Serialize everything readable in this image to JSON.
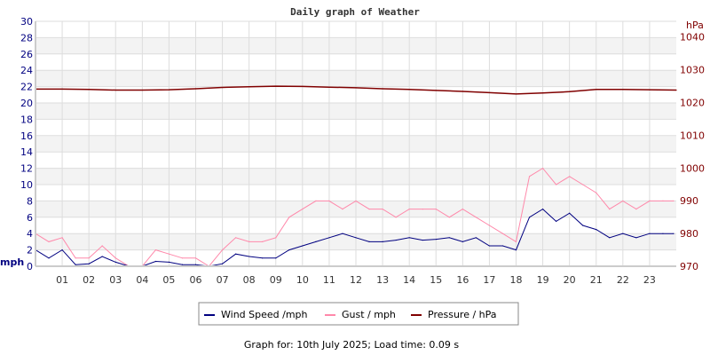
{
  "chart_data": {
    "type": "line",
    "title": "Daily graph of Weather",
    "left_axis": {
      "label": "mph",
      "range": [
        0,
        30
      ],
      "ticks": [
        0,
        2,
        4,
        6,
        8,
        10,
        12,
        14,
        16,
        18,
        20,
        22,
        24,
        26,
        28,
        30
      ],
      "color": "#000080"
    },
    "right_axis": {
      "label": "hPa",
      "range": [
        970,
        1044.8
      ],
      "ticks": [
        970,
        980,
        990,
        1000,
        1010,
        1020,
        1030,
        1040
      ],
      "color": "#800000"
    },
    "x_ticks": [
      "01",
      "02",
      "03",
      "04",
      "05",
      "06",
      "07",
      "08",
      "09",
      "10",
      "11",
      "12",
      "13",
      "14",
      "15",
      "16",
      "17",
      "18",
      "19",
      "20",
      "21",
      "22",
      "23"
    ],
    "x_range_hours": [
      0,
      24
    ],
    "grid": true,
    "legend_position": "bottom",
    "series": [
      {
        "name": "Wind Speed /mph",
        "axis": "left",
        "color": "#000080",
        "x": [
          0,
          0.5,
          1,
          1.5,
          2,
          2.5,
          3,
          3.5,
          4,
          4.5,
          5,
          5.5,
          6,
          6.5,
          7,
          7.5,
          8,
          8.5,
          9,
          9.5,
          10,
          10.5,
          11,
          11.5,
          12,
          12.5,
          13,
          13.5,
          14,
          14.5,
          15,
          15.5,
          16,
          16.5,
          17,
          17.5,
          18,
          18.5,
          19,
          19.5,
          20,
          20.5,
          21,
          21.5,
          22,
          22.5,
          23,
          23.5,
          23.9
        ],
        "values": [
          2,
          1,
          2,
          0.2,
          0.3,
          1.2,
          0.5,
          0,
          0,
          0.6,
          0.5,
          0.2,
          0.2,
          0,
          0.3,
          1.5,
          1.2,
          1,
          1,
          2,
          2.5,
          3,
          3.5,
          4,
          3.5,
          3,
          3,
          3.2,
          3.5,
          3.2,
          3.3,
          3.5,
          3,
          3.5,
          2.5,
          2.5,
          2,
          6,
          7,
          5.5,
          6.5,
          5,
          4.5,
          3.5,
          4,
          3.5,
          4,
          4,
          4
        ]
      },
      {
        "name": "Gust / mph",
        "axis": "left",
        "color": "#ff88aa",
        "x": [
          0,
          0.5,
          1,
          1.5,
          2,
          2.5,
          3,
          3.5,
          4,
          4.5,
          5,
          5.5,
          6,
          6.5,
          7,
          7.5,
          8,
          8.5,
          9,
          9.5,
          10,
          10.5,
          11,
          11.5,
          12,
          12.5,
          13,
          13.5,
          14,
          14.5,
          15,
          15.5,
          16,
          16.5,
          17,
          17.5,
          18,
          18.5,
          19,
          19.5,
          20,
          20.5,
          21,
          21.5,
          22,
          22.5,
          23,
          23.5,
          23.9
        ],
        "values": [
          4,
          3,
          3.5,
          1,
          1,
          2.5,
          1,
          0,
          0,
          2,
          1.5,
          1,
          1,
          0,
          2,
          3.5,
          3,
          3,
          3.5,
          6,
          7,
          8,
          8,
          7,
          8,
          7,
          7,
          6,
          7,
          7,
          7,
          6,
          7,
          6,
          5,
          4,
          3,
          11,
          12,
          10,
          11,
          10,
          9,
          7,
          8,
          7,
          8,
          8,
          8
        ]
      },
      {
        "name": "Pressure / hPa",
        "axis": "right",
        "color": "#800000",
        "x": [
          0,
          1,
          2,
          3,
          4,
          5,
          6,
          7,
          8,
          9,
          10,
          11,
          12,
          13,
          14,
          15,
          16,
          17,
          18,
          19,
          20,
          21,
          22,
          23,
          24
        ],
        "values": [
          1024.1,
          1024.1,
          1024,
          1023.8,
          1023.8,
          1023.9,
          1024.2,
          1024.6,
          1024.8,
          1025,
          1024.9,
          1024.7,
          1024.5,
          1024.2,
          1024,
          1023.7,
          1023.4,
          1023,
          1022.6,
          1022.9,
          1023.3,
          1024,
          1024,
          1023.9,
          1023.8
        ]
      }
    ],
    "footer": "Graph for: 10th July 2025; Load time: 0.09 s"
  }
}
